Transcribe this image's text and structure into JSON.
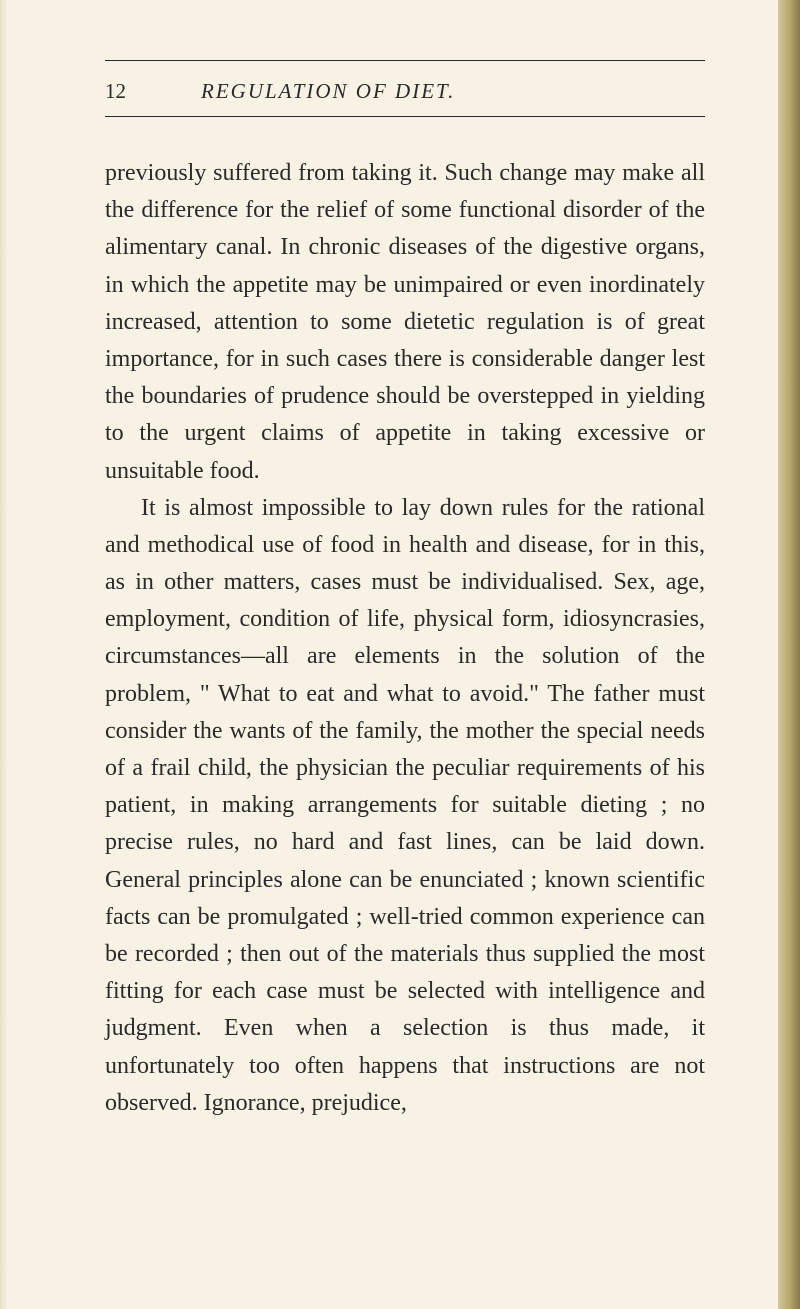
{
  "page": {
    "number": "12",
    "running_title": "REGULATION OF DIET.",
    "paragraphs": [
      "previously suffered from taking it. Such change may make all the difference for the relief of some functional disorder of the alimentary canal. In chronic diseases of the digestive organs, in which the appetite may be unimpaired or even inordinately increased, attention to some dietetic regulation is of great importance, for in such cases there is considerable danger lest the boundaries of prudence should be overstepped in yielding to the urgent claims of appetite in taking excessive or unsuitable food.",
      "It is almost impossible to lay down rules for the rational and methodical use of food in health and disease, for in this, as in other matters, cases must be individualised. Sex, age, employment, condition of life, physical form, idiosyncrasies, circumstances—all are elements in the solution of the problem, \" What to eat and what to avoid.\" The father must consider the wants of the family, the mother the special needs of a frail child, the physician the peculiar requirements of his patient, in making arrangements for suitable dieting ; no precise rules, no hard and fast lines, can be laid down. General principles alone can be enunciated ; known scientific facts can be promulgated ; well-tried common experience can be recorded ; then out of the materials thus supplied the most fitting for each case must be selected with intelligence and judgment. Even when a selection is thus made, it unfortunately too often happens that instructions are not observed. Ignorance, prejudice,"
    ]
  },
  "style": {
    "background_color": "#f7f2e4",
    "text_color": "#2a2a2a",
    "body_fontsize": 24,
    "header_fontsize": 21,
    "line_height": 1.55,
    "edge_gradient": [
      "#d4c79a",
      "#b8a870",
      "#8a7a48"
    ]
  }
}
